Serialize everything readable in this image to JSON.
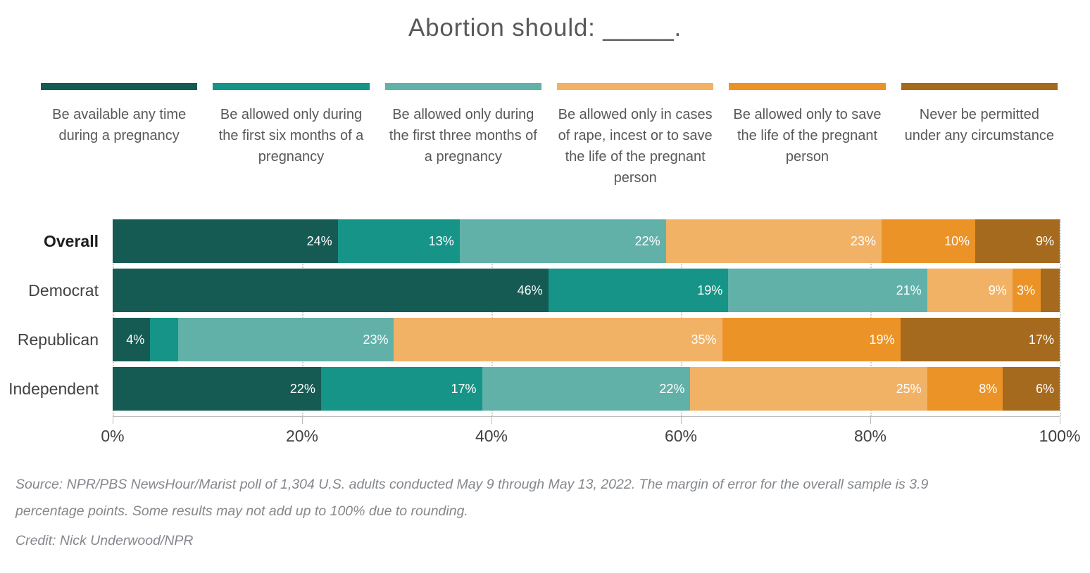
{
  "title": "Abortion should: _____.",
  "chart_data": {
    "type": "bar",
    "stacked": true,
    "orientation": "horizontal",
    "title": "Abortion should: _____.",
    "categories": [
      "Overall",
      "Democrat",
      "Republican",
      "Independent"
    ],
    "category_styles": [
      "bold",
      "normal",
      "normal",
      "normal"
    ],
    "series": [
      {
        "name": "Be available any time during a pregnancy",
        "color": "#155B53",
        "values": [
          24,
          46,
          4,
          22
        ],
        "shown_labels": [
          "24%",
          "46%",
          "4%",
          "22%"
        ]
      },
      {
        "name": "Be allowed only during the first six months of a pregnancy",
        "color": "#169487",
        "values": [
          13,
          19,
          3,
          17
        ],
        "shown_labels": [
          "13%",
          "19%",
          "",
          "17%"
        ]
      },
      {
        "name": "Be allowed only during the first three months of a pregnancy",
        "color": "#61B1A9",
        "values": [
          22,
          21,
          23,
          22
        ],
        "shown_labels": [
          "22%",
          "21%",
          "23%",
          "22%"
        ]
      },
      {
        "name": "Be allowed only in cases of rape, incest or to save the life of the pregnant person",
        "color": "#F2B266",
        "values": [
          23,
          9,
          35,
          25
        ],
        "shown_labels": [
          "23%",
          "9%",
          "35%",
          "25%"
        ]
      },
      {
        "name": "Be allowed only to save the life of the pregnant person",
        "color": "#EB9327",
        "values": [
          10,
          3,
          19,
          8
        ],
        "shown_labels": [
          "10%",
          "3%",
          "19%",
          "8%"
        ]
      },
      {
        "name": "Never be permitted under any circumstance",
        "color": "#A56A1D",
        "values": [
          9,
          2,
          17,
          6
        ],
        "shown_labels": [
          "9%",
          "",
          "17%",
          "6%"
        ]
      }
    ],
    "x_ticks": [
      "0%",
      "20%",
      "40%",
      "60%",
      "80%",
      "100%"
    ],
    "xlim": [
      0,
      100
    ],
    "grid": "vertical-dotted",
    "legend_position": "top",
    "value_suffix": "%"
  },
  "footer": {
    "source_line1": "Source: NPR/PBS NewsHour/Marist poll of 1,304 U.S. adults conducted May 9 through May 13, 2022. The margin of error for the overall sample is 3.9",
    "source_line2": "percentage points. Some results may not add up to 100% due to rounding.",
    "credit": "Credit: Nick Underwood/NPR"
  }
}
